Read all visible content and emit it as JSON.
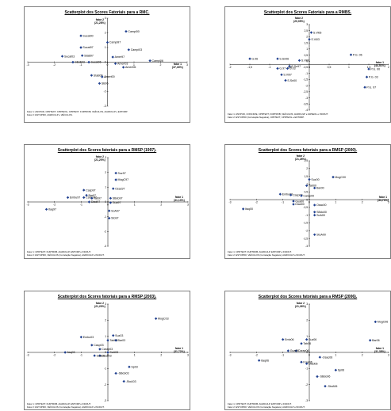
{
  "charts": [
    {
      "id": "rmc",
      "title": "Scatterplot dos Scores Fatoriais para a RMC.",
      "x_axis_label": "fator 1",
      "x_axis_pct": "(37,33%)",
      "y_axis_label": "fator 2",
      "y_axis_pct": "(21,28%)",
      "footnote_1": "Fator 1: ANVPUD, CPRTEXT, CPRTEXG, CPRTEXT, FURTROB, VEÍCULOS, AGRICULP e ENTORP.",
      "footnote_2": "Fator 2: ESTUPRO, AGRICULP e VEÍCULOS.",
      "chart_data": {
        "type": "scatter",
        "xlim": [
          -3,
          3
        ],
        "ylim": [
          -3,
          3
        ],
        "x_ticks": [
          "-3",
          "-2",
          "-1",
          "0",
          "1",
          "2",
          "3"
        ],
        "y_ticks": [
          "3",
          "2",
          "1",
          "0",
          "-1",
          "-2",
          "-3"
        ],
        "points": [
          {
            "label": "Sucat00",
            "x": -1.0,
            "y": 1.8
          },
          {
            "label": "Campi00",
            "x": 0.7,
            "y": 2.1
          },
          {
            "label": "Campi97",
            "x": 0.0,
            "y": 1.35
          },
          {
            "label": "Sucat97",
            "x": -1.0,
            "y": 1.0
          },
          {
            "label": "Campi03",
            "x": 0.8,
            "y": 0.85
          },
          {
            "label": "Sucat03",
            "x": -1.7,
            "y": 0.4
          },
          {
            "label": "StaB97",
            "x": -0.95,
            "y": 0.45
          },
          {
            "label": "Amer97",
            "x": 0.2,
            "y": 0.35
          },
          {
            "label": "Campi06",
            "x": 1.6,
            "y": 0.1
          },
          {
            "label": "Ameri03",
            "x": 0.3,
            "y": -0.1
          },
          {
            "label": "SEsb03",
            "x": -1.3,
            "y": 0.0
          },
          {
            "label": "Sucat06",
            "x": -0.7,
            "y": 0.0
          },
          {
            "label": "Ameri06",
            "x": 0.6,
            "y": -0.35
          },
          {
            "label": "StaB06",
            "x": -0.6,
            "y": -0.9
          },
          {
            "label": "Ameri00",
            "x": -0.2,
            "y": -1.0
          },
          {
            "label": "SB06",
            "x": -0.3,
            "y": -1.45
          }
        ]
      }
    },
    {
      "id": "rmbs",
      "title": "Scatterplot dos Scores Fatoriais para a RMBS.",
      "x_axis_label": "fator 1",
      "x_axis_pct": "(44,51%)",
      "y_axis_label": "fator 2",
      "y_axis_pct": "(20,05%)",
      "footnote_1": "Fator 1: ANVPUD, CONCDVE, CPRTEXT, FURTROB, VEÍCULOS, AGRICULP e GRSEOL e INCDUT.",
      "footnote_2": "Fator 2: ESTUPRO (Correlação Negativa), CPRTEXT, CPRTEXG e ENTORP.",
      "chart_data": {
        "type": "scatter",
        "xlim": [
          -2,
          2
        ],
        "ylim": [
          -4,
          3.5
        ],
        "x_ticks": [
          "-2",
          "-1,5",
          "-1",
          "-0,5",
          "0",
          "0,5",
          "1",
          "1,5",
          "2"
        ],
        "y_ticks": [
          "3",
          "2,5",
          "2",
          "1,5",
          "1",
          "0,5",
          "0",
          "-0,5",
          "-1",
          "-1,5",
          "-2",
          "-2,5",
          "-3",
          "-3,5",
          "-4"
        ],
        "points": [
          {
            "label": "S.Vi06",
            "x": 0.05,
            "y": 2.8
          },
          {
            "label": "S.Vi03",
            "x": 0.0,
            "y": 2.2
          },
          {
            "label": "P.G. 06",
            "x": 1.05,
            "y": 0.85
          },
          {
            "label": "G.06",
            "x": -1.5,
            "y": 0.5
          },
          {
            "label": "S.Sn06",
            "x": -0.8,
            "y": 0.5
          },
          {
            "label": "S.Vi00",
            "x": -0.25,
            "y": 0.35
          },
          {
            "label": "P.G. 00",
            "x": 1.5,
            "y": -0.4
          },
          {
            "label": "S.Sn97",
            "x": -0.5,
            "y": -0.15
          },
          {
            "label": "G.97",
            "x": -0.8,
            "y": -0.35
          },
          {
            "label": "G.03",
            "x": -0.55,
            "y": -0.35
          },
          {
            "label": "P.G. 03",
            "x": 1.45,
            "y": -1.1
          },
          {
            "label": "S.Vi97",
            "x": -0.7,
            "y": -0.9
          },
          {
            "label": "S.Sn00",
            "x": -0.6,
            "y": -1.4
          },
          {
            "label": "P.G. 97",
            "x": 1.4,
            "y": -2.0
          }
        ]
      }
    },
    {
      "id": "rmsp97",
      "title": "Scatterplot dos Scores fatoriais para a RMSP (1997).",
      "x_axis_label": "fator 1",
      "x_axis_pct": "(31,13%)",
      "y_axis_label": "fator 2",
      "y_axis_pct": "(21,20%)",
      "footnote_1": "Fator 1: CPRTEXT, FURTROB, AGRICULP, ENTORP e INCDUT.",
      "footnote_2": "Fator 2: ESTUPRO, VEÍCULOS (Correlação Negativa), AGRICULP e INCDUT.",
      "chart_data": {
        "type": "scatter",
        "xlim": [
          -3,
          3
        ],
        "ylim": [
          -3,
          3
        ],
        "x_ticks": [
          "-3",
          "-2",
          "-1",
          "0",
          "1",
          "2",
          "3"
        ],
        "y_ticks": [
          "3",
          "2",
          "1",
          "0",
          "-1",
          "-2",
          "-3"
        ],
        "points": [
          {
            "label": "Suz97",
            "x": 0.3,
            "y": 1.95
          },
          {
            "label": "MogC97",
            "x": 0.3,
            "y": 1.5
          },
          {
            "label": "Casp97",
            "x": -0.9,
            "y": 0.8
          },
          {
            "label": "Osac97",
            "x": 0.2,
            "y": 0.9
          },
          {
            "label": "Bar97",
            "x": -0.8,
            "y": 0.45
          },
          {
            "label": "Embu97",
            "x": -1.5,
            "y": 0.3
          },
          {
            "label": "Carap97",
            "x": -0.9,
            "y": 0.3
          },
          {
            "label": "Tab97",
            "x": -0.6,
            "y": 0.25
          },
          {
            "label": "SBdo97",
            "x": 0.1,
            "y": 0.25
          },
          {
            "label": "Diad97",
            "x": -0.7,
            "y": 0.0
          },
          {
            "label": "Gua97",
            "x": 0.1,
            "y": -0.05
          },
          {
            "label": "Itaq97",
            "x": -2.3,
            "y": -0.5
          },
          {
            "label": "SoA97",
            "x": 0.05,
            "y": -0.6
          },
          {
            "label": "Sto97",
            "x": 0.05,
            "y": -1.1
          }
        ]
      }
    },
    {
      "id": "rmsp00",
      "title": "Scatterplot dos Scores fatoriais para a RMSP (2000).",
      "x_axis_label": "fator 1",
      "x_axis_pct": "(33,73%)",
      "y_axis_label": "fator 2",
      "y_axis_pct": "(21,26%)",
      "footnote_1": "Fator 1: CPRTEXT, FURTROB, AGRICULP, ENTORP e INCDUT.",
      "footnote_2": "Fator 2: ESTUPRO, VEÍCULOS (Correlação Negativa), AGRICULP e INCDUT.",
      "chart_data": {
        "type": "scatter",
        "xlim": [
          -3,
          3
        ],
        "ylim": [
          -3,
          2.5
        ],
        "x_ticks": [
          "-3",
          "-2",
          "-1",
          "0",
          "1",
          "2",
          "3"
        ],
        "y_ticks": [
          "2,5",
          "2",
          "1,5",
          "1",
          "0,5",
          "0",
          "-0,5",
          "-1",
          "-1,5",
          "-2",
          "-2,5",
          "-3"
        ],
        "points": [
          {
            "label": "MogC00",
            "x": 0.9,
            "y": 1.45
          },
          {
            "label": "Suz00",
            "x": 0.0,
            "y": 1.3
          },
          {
            "label": "Tab00",
            "x": -0.1,
            "y": 0.9
          },
          {
            "label": "Bar00",
            "x": 0.2,
            "y": 0.75
          },
          {
            "label": "Embu00",
            "x": -1.1,
            "y": 0.35
          },
          {
            "label": "Casp00",
            "x": -0.7,
            "y": 0.3
          },
          {
            "label": "Carap00",
            "x": -0.3,
            "y": 0.25
          },
          {
            "label": "Gua00",
            "x": -0.6,
            "y": -0.1
          },
          {
            "label": "Diad00",
            "x": -0.6,
            "y": -0.3
          },
          {
            "label": "Osac00",
            "x": 0.2,
            "y": -0.35
          },
          {
            "label": "Itaq00",
            "x": -2.5,
            "y": -0.6
          },
          {
            "label": "SBdo00",
            "x": 0.2,
            "y": -0.8
          },
          {
            "label": "SoA00",
            "x": 0.2,
            "y": -1.0
          },
          {
            "label": "StoA00",
            "x": 0.2,
            "y": -2.25
          }
        ]
      }
    },
    {
      "id": "rmsp03",
      "title": "Scatterplot dos Scores fatoriais para a RMSP (2003).",
      "x_axis_label": "fator 1",
      "x_axis_pct": "(31,72%)",
      "y_axis_label": "fator 2",
      "y_axis_pct": "(21,20%)",
      "footnote_1": "Fator 1: CPRTEXT, FURTROB, AGRICULP, ENTORP e INCDUT.",
      "footnote_2": "Fator 2: ESTUPRO, VEÍCULOS (Correlação Negativa), AGRICULP e INCDUT.",
      "chart_data": {
        "type": "scatter",
        "xlim": [
          -3,
          3
        ],
        "ylim": [
          -3,
          3
        ],
        "x_ticks": [
          "-3",
          "-2",
          "-1",
          "0",
          "1",
          "2",
          "3"
        ],
        "y_ticks": [
          "3",
          "2",
          "1",
          "0",
          "-1",
          "-2",
          "-3"
        ],
        "points": [
          {
            "label": "MogC03",
            "x": 1.8,
            "y": 2.1
          },
          {
            "label": "Embu03",
            "x": -1.0,
            "y": 0.95
          },
          {
            "label": "Suz03",
            "x": 0.2,
            "y": 1.05
          },
          {
            "label": "Tab03",
            "x": 0.0,
            "y": 0.75
          },
          {
            "label": "Bar03",
            "x": 0.3,
            "y": 0.75
          },
          {
            "label": "Casp03",
            "x": -0.6,
            "y": 0.45
          },
          {
            "label": "Carap03",
            "x": -0.3,
            "y": 0.2
          },
          {
            "label": "Itaq03",
            "x": -1.6,
            "y": 0.0
          },
          {
            "label": "SoA03",
            "x": 0.0,
            "y": 0.0
          },
          {
            "label": "Osac03",
            "x": -0.3,
            "y": -0.2
          },
          {
            "label": "Gua03",
            "x": -0.5,
            "y": -0.2
          },
          {
            "label": "Sp03",
            "x": 0.8,
            "y": -0.9
          },
          {
            "label": "-SBdo03",
            "x": 0.3,
            "y": -1.3
          },
          {
            "label": "-StoA03",
            "x": 0.6,
            "y": -1.8
          }
        ]
      }
    },
    {
      "id": "rmsp06",
      "title": "Scatterplot dos Scores fatoriais para a RMSP (2006).",
      "x_axis_label": "fator 1",
      "x_axis_pct": "(31,35%)",
      "y_axis_label": "fator 2",
      "y_axis_pct": "(21,26%)",
      "footnote_1": "Fator 1: CPRTEXT, FURTROB, AGRICULP, ENTORP e INCDUT.",
      "footnote_2": "Fator 2: ESTUPRO, VEÍCULOS (Correlação Negativa), AGRICULP e INCDUT.",
      "chart_data": {
        "type": "scatter",
        "xlim": [
          -3,
          3
        ],
        "ylim": [
          -3,
          3
        ],
        "x_ticks": [
          "-3",
          "-2",
          "-1",
          "0",
          "1",
          "2",
          "3"
        ],
        "y_ticks": [
          "3",
          "2",
          "1",
          "0",
          "-1",
          "-2",
          "-3"
        ],
        "points": [
          {
            "label": "MogC06",
            "x": 2.5,
            "y": 1.9
          },
          {
            "label": "Emb06",
            "x": -1.0,
            "y": 0.8
          },
          {
            "label": "Suz06",
            "x": -0.1,
            "y": 0.8
          },
          {
            "label": "Tab06",
            "x": -0.3,
            "y": 0.55
          },
          {
            "label": "Bar06",
            "x": 2.3,
            "y": 0.75
          },
          {
            "label": "Carap06",
            "x": -0.5,
            "y": 0.1
          },
          {
            "label": "Gua06",
            "x": -0.8,
            "y": 0.1
          },
          {
            "label": "Itaq06",
            "x": -1.9,
            "y": -0.5
          },
          {
            "label": "-Osac06",
            "x": 0.4,
            "y": -0.3
          },
          {
            "label": "Fran06",
            "x": -0.3,
            "y": -0.6
          },
          {
            "label": "Diad06",
            "x": -0.1,
            "y": -0.7
          },
          {
            "label": "Sp06",
            "x": 1.0,
            "y": -1.1
          },
          {
            "label": "-SBdo06",
            "x": 0.3,
            "y": -1.5
          },
          {
            "label": "-StoA06",
            "x": 0.6,
            "y": -2.1
          }
        ]
      }
    }
  ]
}
